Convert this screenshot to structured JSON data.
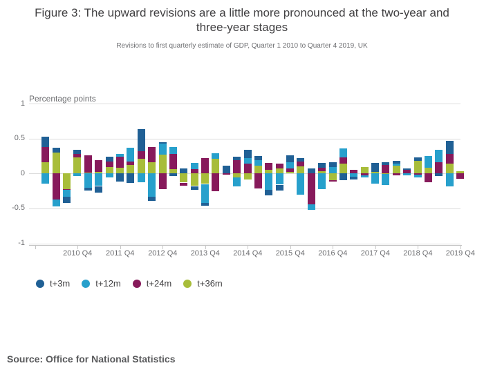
{
  "source": {
    "label": "Source: Office for National Statistics"
  },
  "chart_data": {
    "type": "bar",
    "stacked": true,
    "title": "Figure 3: The upward revisions are a little more pronounced at the two-year and three-year stages",
    "subtitle": "Revisions to first quarterly estimate of GDP, Quarter 1 2010 to Quarter 4 2019, UK",
    "ylabel": "Percentage points",
    "xlabel": "",
    "ylim": [
      -1,
      1
    ],
    "y_tick_labels": [
      "1",
      "0.5",
      "0",
      "-0.5",
      "-1"
    ],
    "y_tick_values": [
      1,
      0.5,
      0,
      -0.5,
      -1
    ],
    "grid": "horizontal",
    "legend_position": "bottom-left",
    "categories": [
      "2010 Q1",
      "2010 Q2",
      "2010 Q3",
      "2010 Q4",
      "2011 Q1",
      "2011 Q2",
      "2011 Q3",
      "2011 Q4",
      "2012 Q1",
      "2012 Q2",
      "2012 Q3",
      "2012 Q4",
      "2013 Q1",
      "2013 Q2",
      "2013 Q3",
      "2013 Q4",
      "2014 Q1",
      "2014 Q2",
      "2014 Q3",
      "2014 Q4",
      "2015 Q1",
      "2015 Q2",
      "2015 Q3",
      "2015 Q4",
      "2016 Q1",
      "2016 Q2",
      "2016 Q3",
      "2016 Q4",
      "2017 Q1",
      "2017 Q2",
      "2017 Q3",
      "2017 Q4",
      "2018 Q1",
      "2018 Q2",
      "2018 Q3",
      "2018 Q4",
      "2019 Q1",
      "2019 Q2",
      "2019 Q3",
      "2019 Q4"
    ],
    "x_tick_labels": [
      "2010 Q4",
      "2011 Q4",
      "2012 Q4",
      "2013 Q4",
      "2014 Q4",
      "2015 Q4",
      "2016 Q4",
      "2017 Q4",
      "2018 Q4",
      "2019 Q4"
    ],
    "series": [
      {
        "name": "t+3m",
        "color": "#206095",
        "values": [
          0.15,
          0.07,
          -0.09,
          0.06,
          -0.04,
          -0.09,
          0.07,
          -0.12,
          -0.14,
          0.32,
          -0.06,
          0.02,
          -0.04,
          0.07,
          -0.05,
          -0.04,
          0,
          0.11,
          0.05,
          0.12,
          0.06,
          -0.08,
          -0.08,
          0.1,
          0.05,
          0.07,
          0.07,
          0.07,
          -0.1,
          -0.04,
          0,
          0.13,
          0.04,
          0.04,
          0.02,
          0.05,
          0,
          -0.04,
          0.19,
          0
        ]
      },
      {
        "name": "t+12m",
        "color": "#27A0CC",
        "values": [
          -0.15,
          -0.1,
          -0.1,
          -0.04,
          -0.2,
          -0.18,
          -0.06,
          0.04,
          0.2,
          -0.13,
          -0.33,
          0.16,
          0.1,
          0,
          0.09,
          -0.27,
          0.08,
          0,
          -0.12,
          0.08,
          0.08,
          -0.23,
          -0.16,
          0.09,
          -0.3,
          -0.08,
          -0.22,
          0.09,
          0.13,
          -0.05,
          -0.03,
          -0.15,
          -0.16,
          0.03,
          -0.03,
          -0.04,
          0.17,
          0.18,
          -0.19,
          0
        ]
      },
      {
        "name": "t+24m",
        "color": "#871A5B",
        "values": [
          0.22,
          -0.37,
          -0.01,
          0.05,
          0.25,
          0.17,
          0.08,
          0.16,
          0.05,
          0.11,
          0.22,
          -0.22,
          0.22,
          -0.04,
          0.06,
          0.22,
          -0.25,
          -0.02,
          0.19,
          0.14,
          -0.21,
          0.1,
          0.07,
          0.05,
          0.07,
          -0.44,
          0.05,
          -0.02,
          0.09,
          0.05,
          -0.03,
          0,
          0.12,
          -0.03,
          0.05,
          -0.02,
          -0.13,
          0.16,
          0.14,
          -0.08
        ]
      },
      {
        "name": "t+36m",
        "color": "#A8BD3A",
        "values": [
          0.16,
          0.3,
          -0.22,
          0.23,
          0.01,
          0.02,
          0.09,
          0.08,
          0.12,
          0.21,
          0.16,
          0.27,
          0.06,
          -0.13,
          -0.18,
          -0.15,
          0.21,
          0,
          -0.06,
          -0.09,
          0.11,
          0.05,
          0.07,
          0.02,
          0.1,
          0,
          0.03,
          -0.1,
          0.14,
          0,
          0.09,
          0.02,
          -0.01,
          0.11,
          0,
          0.18,
          0.08,
          0,
          0.14,
          0.03
        ]
      }
    ]
  }
}
